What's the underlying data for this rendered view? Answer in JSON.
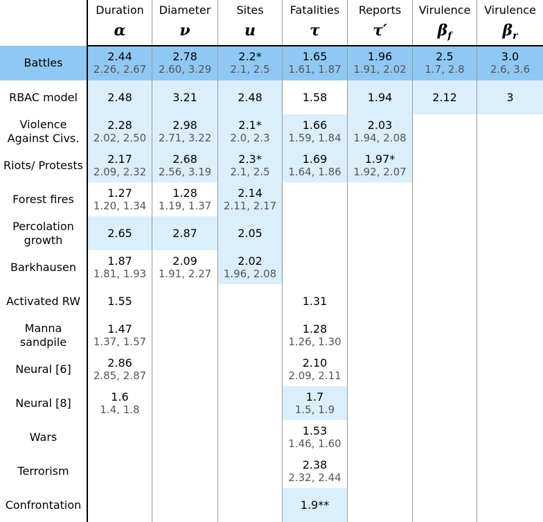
{
  "colors": {
    "highlight": "#90c8f4",
    "light": "#dbeefb",
    "ci_text": "#555555"
  },
  "columns": [
    {
      "name": "Duration",
      "symbol": "α",
      "sub": ""
    },
    {
      "name": "Diameter",
      "symbol": "ν",
      "sub": ""
    },
    {
      "name": "Sites",
      "symbol": "u",
      "sub": ""
    },
    {
      "name": "Fatalities",
      "symbol": "τ",
      "sub": ""
    },
    {
      "name": "Reports",
      "symbol": "τ′",
      "sub": ""
    },
    {
      "name": "Virulence",
      "symbol": "β",
      "sub": "f"
    },
    {
      "name": "Virulence",
      "symbol": "β",
      "sub": "r"
    }
  ],
  "rows": [
    {
      "label": "Battles",
      "highlight": true,
      "cells": [
        {
          "v": "2.44",
          "ci": "2.26, 2.67",
          "bg": "h"
        },
        {
          "v": "2.78",
          "ci": "2.60, 3.29",
          "bg": "h"
        },
        {
          "v": "2.2*",
          "ci": "2.1, 2.5",
          "bg": "h"
        },
        {
          "v": "1.65",
          "ci": "1.61, 1.87",
          "bg": "h"
        },
        {
          "v": "1.96",
          "ci": "1.91, 2.02",
          "bg": "h"
        },
        {
          "v": "2.5",
          "ci": "1.7, 2.8",
          "bg": "h"
        },
        {
          "v": "3.0",
          "ci": "2.6, 3.6",
          "bg": "h"
        }
      ]
    },
    {
      "label": "RBAC model",
      "cells": [
        {
          "v": "2.48",
          "ci": "",
          "bg": "l"
        },
        {
          "v": "3.21",
          "ci": "",
          "bg": "l"
        },
        {
          "v": "2.48",
          "ci": "",
          "bg": "l"
        },
        {
          "v": "1.58",
          "ci": "",
          "bg": ""
        },
        {
          "v": "1.94",
          "ci": "",
          "bg": "l"
        },
        {
          "v": "2.12",
          "ci": "",
          "bg": "l"
        },
        {
          "v": "3",
          "ci": "",
          "bg": "l"
        }
      ]
    },
    {
      "label": "Violence Against Civs.",
      "cells": [
        {
          "v": "2.28",
          "ci": "2.02, 2.50",
          "bg": "l"
        },
        {
          "v": "2.98",
          "ci": "2.71, 3.22",
          "bg": "l"
        },
        {
          "v": "2.1*",
          "ci": "2.0, 2.3",
          "bg": "l"
        },
        {
          "v": "1.66",
          "ci": "1.59, 1.84",
          "bg": "l"
        },
        {
          "v": "2.03",
          "ci": "1.94, 2.08",
          "bg": "l"
        },
        {
          "v": "",
          "ci": "",
          "bg": ""
        },
        {
          "v": "",
          "ci": "",
          "bg": ""
        }
      ]
    },
    {
      "label": "Riots/ Protests",
      "cells": [
        {
          "v": "2.17",
          "ci": "2.09, 2.32",
          "bg": "l"
        },
        {
          "v": "2.68",
          "ci": "2.56, 3.19",
          "bg": "l"
        },
        {
          "v": "2.3*",
          "ci": "2.1, 2.5",
          "bg": "l"
        },
        {
          "v": "1.69",
          "ci": "1.64, 1.86",
          "bg": "l"
        },
        {
          "v": "1.97*",
          "ci": "1.92, 2.07",
          "bg": "l"
        },
        {
          "v": "",
          "ci": "",
          "bg": ""
        },
        {
          "v": "",
          "ci": "",
          "bg": ""
        }
      ]
    },
    {
      "label": "Forest fires",
      "cells": [
        {
          "v": "1.27",
          "ci": "1.20, 1.34",
          "bg": ""
        },
        {
          "v": "1.28",
          "ci": "1.19, 1.37",
          "bg": ""
        },
        {
          "v": "2.14",
          "ci": "2.11, 2.17",
          "bg": "l"
        },
        {
          "v": "",
          "ci": "",
          "bg": ""
        },
        {
          "v": "",
          "ci": "",
          "bg": ""
        },
        {
          "v": "",
          "ci": "",
          "bg": ""
        },
        {
          "v": "",
          "ci": "",
          "bg": ""
        }
      ]
    },
    {
      "label": "Percolation growth",
      "cells": [
        {
          "v": "2.65",
          "ci": "",
          "bg": "l"
        },
        {
          "v": "2.87",
          "ci": "",
          "bg": "l"
        },
        {
          "v": "2.05",
          "ci": "",
          "bg": "l"
        },
        {
          "v": "",
          "ci": "",
          "bg": ""
        },
        {
          "v": "",
          "ci": "",
          "bg": ""
        },
        {
          "v": "",
          "ci": "",
          "bg": ""
        },
        {
          "v": "",
          "ci": "",
          "bg": ""
        }
      ]
    },
    {
      "label": "Barkhausen",
      "cells": [
        {
          "v": "1.87",
          "ci": "1.81, 1.93",
          "bg": ""
        },
        {
          "v": "2.09",
          "ci": "1.91, 2.27",
          "bg": ""
        },
        {
          "v": "2.02",
          "ci": "1.96, 2.08",
          "bg": "l"
        },
        {
          "v": "",
          "ci": "",
          "bg": ""
        },
        {
          "v": "",
          "ci": "",
          "bg": ""
        },
        {
          "v": "",
          "ci": "",
          "bg": ""
        },
        {
          "v": "",
          "ci": "",
          "bg": ""
        }
      ]
    },
    {
      "label": "Activated RW",
      "cells": [
        {
          "v": "1.55",
          "ci": "",
          "bg": ""
        },
        {
          "v": "",
          "ci": "",
          "bg": ""
        },
        {
          "v": "",
          "ci": "",
          "bg": ""
        },
        {
          "v": "1.31",
          "ci": "",
          "bg": ""
        },
        {
          "v": "",
          "ci": "",
          "bg": ""
        },
        {
          "v": "",
          "ci": "",
          "bg": ""
        },
        {
          "v": "",
          "ci": "",
          "bg": ""
        }
      ]
    },
    {
      "label": "Manna sandpile",
      "cells": [
        {
          "v": "1.47",
          "ci": "1.37, 1.57",
          "bg": ""
        },
        {
          "v": "",
          "ci": "",
          "bg": ""
        },
        {
          "v": "",
          "ci": "",
          "bg": ""
        },
        {
          "v": "1.28",
          "ci": "1.26, 1.30",
          "bg": ""
        },
        {
          "v": "",
          "ci": "",
          "bg": ""
        },
        {
          "v": "",
          "ci": "",
          "bg": ""
        },
        {
          "v": "",
          "ci": "",
          "bg": ""
        }
      ]
    },
    {
      "label": "Neural [6]",
      "cells": [
        {
          "v": "2.86",
          "ci": "2.85, 2.87",
          "bg": ""
        },
        {
          "v": "",
          "ci": "",
          "bg": ""
        },
        {
          "v": "",
          "ci": "",
          "bg": ""
        },
        {
          "v": "2.10",
          "ci": "2.09, 2.11",
          "bg": ""
        },
        {
          "v": "",
          "ci": "",
          "bg": ""
        },
        {
          "v": "",
          "ci": "",
          "bg": ""
        },
        {
          "v": "",
          "ci": "",
          "bg": ""
        }
      ]
    },
    {
      "label": "Neural [8]",
      "cells": [
        {
          "v": "1.6",
          "ci": "1.4, 1.8",
          "bg": ""
        },
        {
          "v": "",
          "ci": "",
          "bg": ""
        },
        {
          "v": "",
          "ci": "",
          "bg": ""
        },
        {
          "v": "1.7",
          "ci": "1.5, 1.9",
          "bg": "l"
        },
        {
          "v": "",
          "ci": "",
          "bg": ""
        },
        {
          "v": "",
          "ci": "",
          "bg": ""
        },
        {
          "v": "",
          "ci": "",
          "bg": ""
        }
      ]
    },
    {
      "label": "Wars",
      "cells": [
        {
          "v": "",
          "ci": "",
          "bg": ""
        },
        {
          "v": "",
          "ci": "",
          "bg": ""
        },
        {
          "v": "",
          "ci": "",
          "bg": ""
        },
        {
          "v": "1.53",
          "ci": "1.46, 1.60",
          "bg": ""
        },
        {
          "v": "",
          "ci": "",
          "bg": ""
        },
        {
          "v": "",
          "ci": "",
          "bg": ""
        },
        {
          "v": "",
          "ci": "",
          "bg": ""
        }
      ]
    },
    {
      "label": "Terrorism",
      "cells": [
        {
          "v": "",
          "ci": "",
          "bg": ""
        },
        {
          "v": "",
          "ci": "",
          "bg": ""
        },
        {
          "v": "",
          "ci": "",
          "bg": ""
        },
        {
          "v": "2.38",
          "ci": "2.32, 2.44",
          "bg": ""
        },
        {
          "v": "",
          "ci": "",
          "bg": ""
        },
        {
          "v": "",
          "ci": "",
          "bg": ""
        },
        {
          "v": "",
          "ci": "",
          "bg": ""
        }
      ]
    },
    {
      "label": "Confrontation",
      "cells": [
        {
          "v": "",
          "ci": "",
          "bg": ""
        },
        {
          "v": "",
          "ci": "",
          "bg": ""
        },
        {
          "v": "",
          "ci": "",
          "bg": ""
        },
        {
          "v": "1.9**",
          "ci": "",
          "bg": "l"
        },
        {
          "v": "",
          "ci": "",
          "bg": ""
        },
        {
          "v": "",
          "ci": "",
          "bg": ""
        },
        {
          "v": "",
          "ci": "",
          "bg": ""
        }
      ]
    }
  ]
}
